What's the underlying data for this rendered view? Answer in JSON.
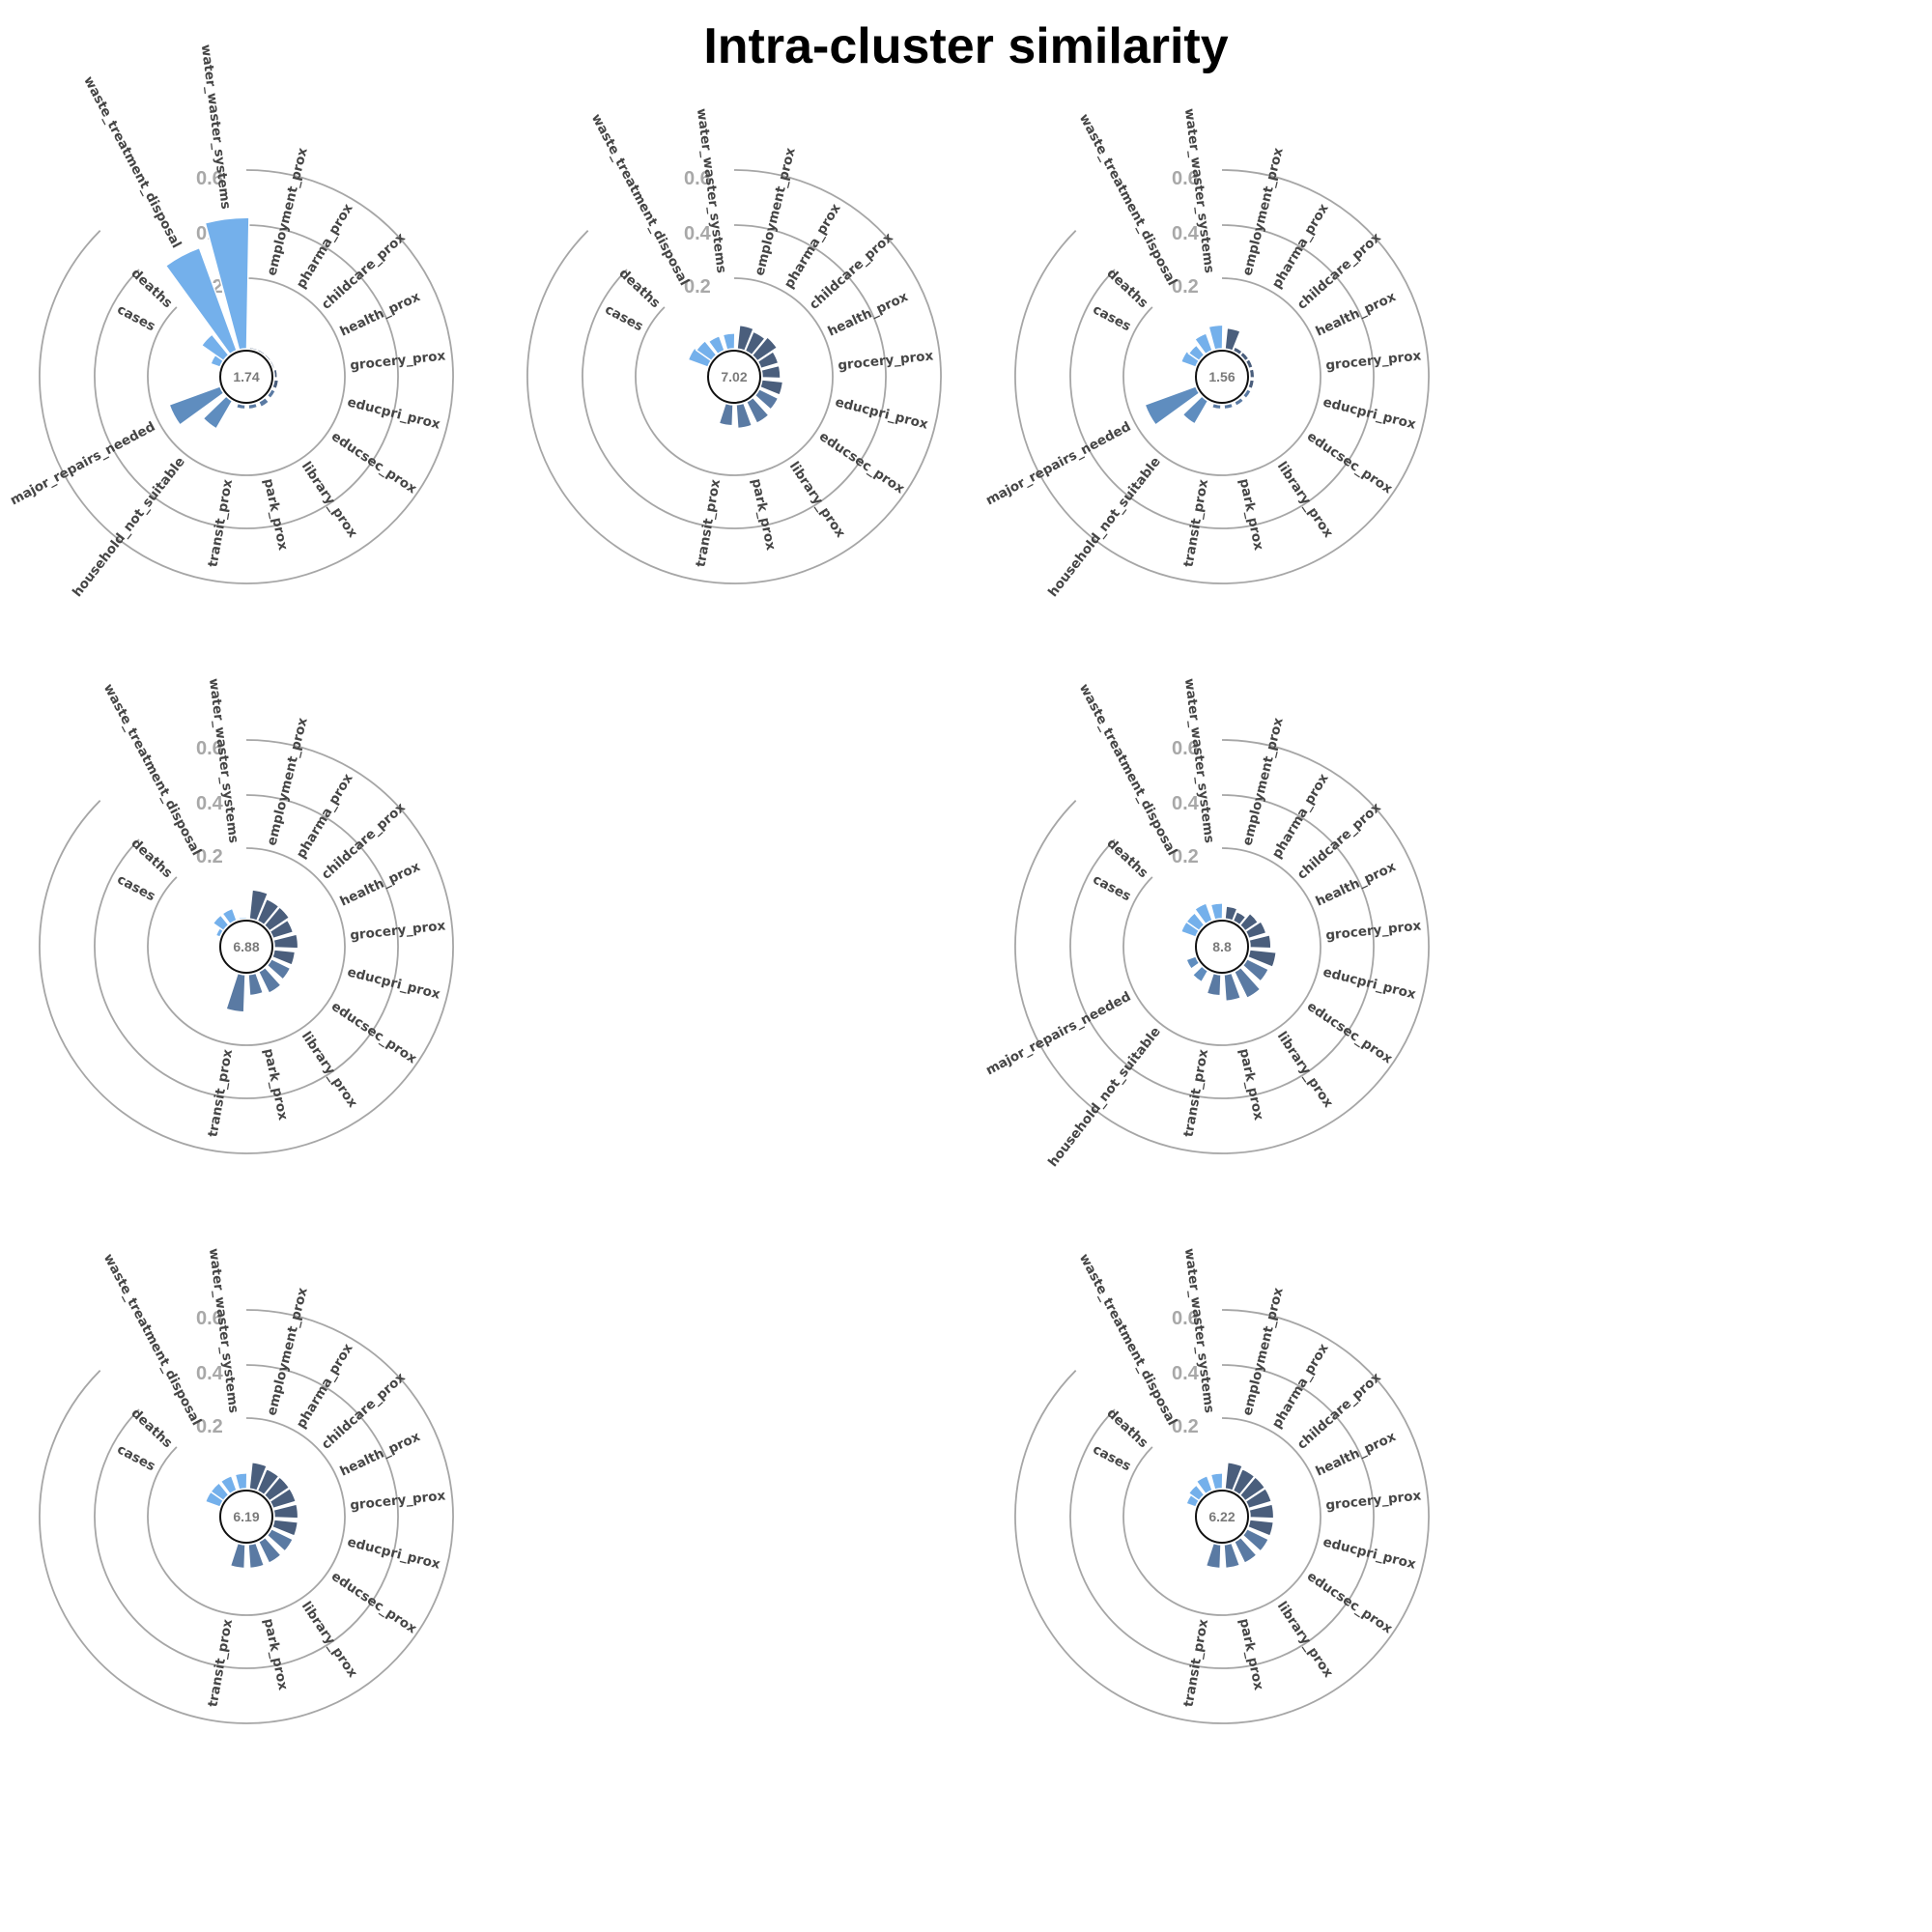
{
  "title": "Intra-cluster similarity",
  "colors": {
    "light": "#74b0eb",
    "mid": "#5f8dbf",
    "steel": "#5a7aa3",
    "dark": "#4a5e7c",
    "ring": "#a6a6a6"
  },
  "chart_data": [
    {
      "type": "radial-bar",
      "center_value": "1.74",
      "ticks": [
        "0.6",
        "0.4",
        "0.2"
      ],
      "items": [
        {
          "label": "cases",
          "value": 0.04,
          "group": "light"
        },
        {
          "label": "deaths",
          "value": 0.1,
          "group": "light"
        },
        {
          "label": "waste_treatment_disposal",
          "value": 0.4,
          "group": "light"
        },
        {
          "label": "water_waster_systems",
          "value": 0.48,
          "group": "light"
        },
        {
          "label": "employment_prox",
          "value": 0.01,
          "group": "dark"
        },
        {
          "label": "pharma_prox",
          "value": 0.01,
          "group": "dark"
        },
        {
          "label": "childcare_prox",
          "value": 0.01,
          "group": "dark"
        },
        {
          "label": "health_prox",
          "value": 0.01,
          "group": "dark"
        },
        {
          "label": "grocery_prox",
          "value": 0.015,
          "group": "dark"
        },
        {
          "label": "educpri_prox",
          "value": 0.02,
          "group": "dark"
        },
        {
          "label": "educsec_prox",
          "value": 0.02,
          "group": "steel"
        },
        {
          "label": "library_prox",
          "value": 0.025,
          "group": "steel"
        },
        {
          "label": "park_prox",
          "value": 0.02,
          "group": "steel"
        },
        {
          "label": "transit_prox",
          "value": 0.02,
          "group": "steel"
        },
        {
          "label": "household_not_suitable",
          "value": 0.12,
          "group": "mid"
        },
        {
          "label": "major_repairs_needed",
          "value": 0.2,
          "group": "mid"
        }
      ]
    },
    {
      "type": "radial-bar",
      "center_value": "7.02",
      "ticks": [
        "0.6",
        "0.4",
        "0.2"
      ],
      "items": [
        {
          "label": "cases",
          "value": 0.08,
          "group": "light"
        },
        {
          "label": "deaths",
          "value": 0.07,
          "group": "light"
        },
        {
          "label": "waste_treatment_disposal",
          "value": 0.06,
          "group": "light"
        },
        {
          "label": "water_waster_systems",
          "value": 0.06,
          "group": "light"
        },
        {
          "label": "employment_prox",
          "value": 0.09,
          "group": "dark"
        },
        {
          "label": "pharma_prox",
          "value": 0.08,
          "group": "dark"
        },
        {
          "label": "childcare_prox",
          "value": 0.09,
          "group": "dark"
        },
        {
          "label": "health_prox",
          "value": 0.07,
          "group": "dark"
        },
        {
          "label": "grocery_prox",
          "value": 0.07,
          "group": "dark"
        },
        {
          "label": "educpri_prox",
          "value": 0.08,
          "group": "dark"
        },
        {
          "label": "educsec_prox",
          "value": 0.08,
          "group": "steel"
        },
        {
          "label": "library_prox",
          "value": 0.09,
          "group": "steel"
        },
        {
          "label": "park_prox",
          "value": 0.09,
          "group": "steel"
        },
        {
          "label": "transit_prox",
          "value": 0.08,
          "group": "steel"
        }
      ]
    },
    {
      "type": "radial-bar",
      "center_value": "1.56",
      "ticks": [
        "0.6",
        "0.4",
        "0.2"
      ],
      "items": [
        {
          "label": "cases",
          "value": 0.06,
          "group": "light"
        },
        {
          "label": "deaths",
          "value": 0.05,
          "group": "light"
        },
        {
          "label": "waste_treatment_disposal",
          "value": 0.07,
          "group": "light"
        },
        {
          "label": "water_waster_systems",
          "value": 0.09,
          "group": "light"
        },
        {
          "label": "employment_prox",
          "value": 0.08,
          "group": "dark"
        },
        {
          "label": "pharma_prox",
          "value": 0.02,
          "group": "dark"
        },
        {
          "label": "childcare_prox",
          "value": 0.02,
          "group": "dark"
        },
        {
          "label": "health_prox",
          "value": 0.02,
          "group": "dark"
        },
        {
          "label": "grocery_prox",
          "value": 0.02,
          "group": "dark"
        },
        {
          "label": "educpri_prox",
          "value": 0.02,
          "group": "dark"
        },
        {
          "label": "educsec_prox",
          "value": 0.02,
          "group": "steel"
        },
        {
          "label": "library_prox",
          "value": 0.02,
          "group": "steel"
        },
        {
          "label": "park_prox",
          "value": 0.02,
          "group": "steel"
        },
        {
          "label": "transit_prox",
          "value": 0.02,
          "group": "steel"
        },
        {
          "label": "household_not_suitable",
          "value": 0.1,
          "group": "mid"
        },
        {
          "label": "major_repairs_needed",
          "value": 0.2,
          "group": "mid"
        }
      ]
    },
    {
      "type": "radial-bar",
      "center_value": "6.88",
      "ticks": [
        "0.6",
        "0.4",
        "0.2"
      ],
      "items": [
        {
          "label": "cases",
          "value": 0.02,
          "group": "light"
        },
        {
          "label": "deaths",
          "value": 0.05,
          "group": "light"
        },
        {
          "label": "waste_treatment_disposal",
          "value": 0.05,
          "group": "light"
        },
        {
          "label": "water_waster_systems",
          "value": 0.01,
          "group": "light"
        },
        {
          "label": "employment_prox",
          "value": 0.11,
          "group": "dark"
        },
        {
          "label": "pharma_prox",
          "value": 0.09,
          "group": "dark"
        },
        {
          "label": "childcare_prox",
          "value": 0.09,
          "group": "dark"
        },
        {
          "label": "health_prox",
          "value": 0.08,
          "group": "dark"
        },
        {
          "label": "grocery_prox",
          "value": 0.09,
          "group": "dark"
        },
        {
          "label": "educpri_prox",
          "value": 0.08,
          "group": "dark"
        },
        {
          "label": "educsec_prox",
          "value": 0.08,
          "group": "steel"
        },
        {
          "label": "library_prox",
          "value": 0.09,
          "group": "steel"
        },
        {
          "label": "park_prox",
          "value": 0.08,
          "group": "steel"
        },
        {
          "label": "transit_prox",
          "value": 0.14,
          "group": "steel"
        }
      ]
    },
    {
      "type": "radial-bar",
      "center_value": "8.8",
      "ticks": [
        "0.6",
        "0.4",
        "0.2"
      ],
      "items": [
        {
          "label": "cases",
          "value": 0.06,
          "group": "light"
        },
        {
          "label": "deaths",
          "value": 0.06,
          "group": "light"
        },
        {
          "label": "waste_treatment_disposal",
          "value": 0.07,
          "group": "light"
        },
        {
          "label": "water_waster_systems",
          "value": 0.06,
          "group": "light"
        },
        {
          "label": "employment_prox",
          "value": 0.05,
          "group": "dark"
        },
        {
          "label": "pharma_prox",
          "value": 0.04,
          "group": "dark"
        },
        {
          "label": "childcare_prox",
          "value": 0.06,
          "group": "dark"
        },
        {
          "label": "health_prox",
          "value": 0.07,
          "group": "dark"
        },
        {
          "label": "grocery_prox",
          "value": 0.08,
          "group": "dark"
        },
        {
          "label": "educpri_prox",
          "value": 0.1,
          "group": "dark"
        },
        {
          "label": "educsec_prox",
          "value": 0.09,
          "group": "steel"
        },
        {
          "label": "library_prox",
          "value": 0.11,
          "group": "steel"
        },
        {
          "label": "park_prox",
          "value": 0.1,
          "group": "steel"
        },
        {
          "label": "transit_prox",
          "value": 0.08,
          "group": "steel"
        },
        {
          "label": "household_not_suitable",
          "value": 0.05,
          "group": "mid"
        },
        {
          "label": "major_repairs_needed",
          "value": 0.04,
          "group": "mid"
        }
      ]
    },
    {
      "type": "radial-bar",
      "center_value": "6.19",
      "ticks": [
        "0.6",
        "0.4",
        "0.2"
      ],
      "items": [
        {
          "label": "cases",
          "value": 0.06,
          "group": "light"
        },
        {
          "label": "deaths",
          "value": 0.06,
          "group": "light"
        },
        {
          "label": "waste_treatment_disposal",
          "value": 0.06,
          "group": "light"
        },
        {
          "label": "water_waster_systems",
          "value": 0.06,
          "group": "light"
        },
        {
          "label": "employment_prox",
          "value": 0.1,
          "group": "dark"
        },
        {
          "label": "pharma_prox",
          "value": 0.09,
          "group": "dark"
        },
        {
          "label": "childcare_prox",
          "value": 0.09,
          "group": "dark"
        },
        {
          "label": "health_prox",
          "value": 0.09,
          "group": "dark"
        },
        {
          "label": "grocery_prox",
          "value": 0.09,
          "group": "dark"
        },
        {
          "label": "educpri_prox",
          "value": 0.09,
          "group": "dark"
        },
        {
          "label": "educsec_prox",
          "value": 0.09,
          "group": "steel"
        },
        {
          "label": "library_prox",
          "value": 0.09,
          "group": "steel"
        },
        {
          "label": "park_prox",
          "value": 0.09,
          "group": "steel"
        },
        {
          "label": "transit_prox",
          "value": 0.09,
          "group": "steel"
        }
      ]
    },
    {
      "type": "radial-bar",
      "center_value": "6.22",
      "ticks": [
        "0.6",
        "0.4",
        "0.2"
      ],
      "items": [
        {
          "label": "cases",
          "value": 0.04,
          "group": "light"
        },
        {
          "label": "deaths",
          "value": 0.05,
          "group": "light"
        },
        {
          "label": "waste_treatment_disposal",
          "value": 0.06,
          "group": "light"
        },
        {
          "label": "water_waster_systems",
          "value": 0.06,
          "group": "light"
        },
        {
          "label": "employment_prox",
          "value": 0.1,
          "group": "dark"
        },
        {
          "label": "pharma_prox",
          "value": 0.09,
          "group": "dark"
        },
        {
          "label": "childcare_prox",
          "value": 0.09,
          "group": "dark"
        },
        {
          "label": "health_prox",
          "value": 0.09,
          "group": "dark"
        },
        {
          "label": "grocery_prox",
          "value": 0.09,
          "group": "dark"
        },
        {
          "label": "educpri_prox",
          "value": 0.09,
          "group": "dark"
        },
        {
          "label": "educsec_prox",
          "value": 0.09,
          "group": "steel"
        },
        {
          "label": "library_prox",
          "value": 0.09,
          "group": "steel"
        },
        {
          "label": "park_prox",
          "value": 0.09,
          "group": "steel"
        },
        {
          "label": "transit_prox",
          "value": 0.09,
          "group": "steel"
        }
      ]
    }
  ]
}
